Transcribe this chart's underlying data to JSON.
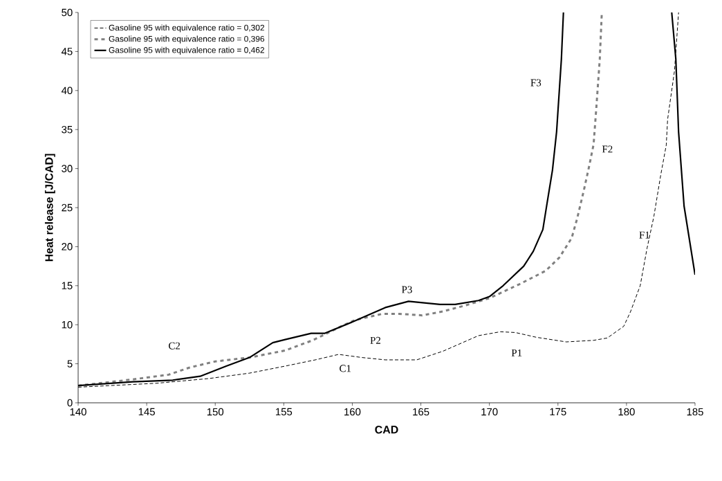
{
  "chart_data": {
    "type": "line",
    "xlabel": "CAD",
    "ylabel": "Heat release [J/CAD]",
    "xlim": [
      140,
      185
    ],
    "ylim": [
      0,
      50
    ],
    "xticks": [
      140,
      145,
      150,
      155,
      160,
      165,
      170,
      175,
      180,
      185
    ],
    "yticks": [
      0,
      5,
      10,
      15,
      20,
      25,
      30,
      35,
      40,
      45,
      50
    ],
    "grid": false,
    "legend": "top left",
    "marker": "none",
    "series": [
      {
        "name": "Gasoline 95 with equivalence ratio = 0,302",
        "color": "#000000",
        "line_style": "dashed",
        "x": [
          140,
          145.7,
          149.5,
          152.5,
          155.1,
          157.3,
          159,
          160.7,
          162.4,
          164.7,
          166.6,
          169.2,
          170.8,
          171.9,
          173.4,
          175.6,
          177.6,
          178.6,
          179.8,
          180.3,
          181,
          181.5,
          182,
          182.5,
          182.9,
          183,
          183.5,
          183.8
        ],
        "values": [
          2.0,
          2.5,
          3.1,
          3.8,
          4.7,
          5.5,
          6.2,
          5.8,
          5.5,
          5.5,
          6.6,
          8.6,
          9.1,
          9.0,
          8.4,
          7.8,
          8.0,
          8.3,
          9.8,
          11.7,
          15,
          19.8,
          23.9,
          29.2,
          33,
          36.3,
          42.5,
          50
        ]
      },
      {
        "name": "Gasoline 95 with equivalence ratio = 0,396",
        "color": "#808080",
        "line_style": "dotted",
        "x": [
          140,
          144,
          146.6,
          148.1,
          150,
          152.5,
          155.1,
          157.1,
          159.2,
          160.2,
          162.2,
          163.4,
          165.1,
          166.6,
          168.3,
          170,
          172.2,
          174.1,
          175.1,
          176,
          176.4,
          176.9,
          177.3,
          177.6,
          177.8,
          178.05,
          178.2
        ],
        "values": [
          2.2,
          3.0,
          3.6,
          4.5,
          5.3,
          5.8,
          6.7,
          8,
          9.8,
          10.6,
          11.4,
          11.4,
          11.2,
          11.7,
          12.5,
          13.4,
          15.2,
          16.9,
          18.6,
          21.1,
          23.6,
          27.3,
          30.5,
          33.1,
          37.8,
          44,
          50
        ]
      },
      {
        "name": "Gasoline 95 with equivalence ratio = 0,462",
        "color": "#000000",
        "line_style": "solid",
        "x": [
          140,
          144,
          146.9,
          148.9,
          150.8,
          152.5,
          154.2,
          155.1,
          157,
          158,
          160.2,
          162.4,
          164.1,
          166.4,
          167.5,
          169.2,
          170,
          171,
          172.5,
          173.2,
          173.9,
          174.2,
          174.6,
          174.9,
          175.25,
          175.4,
          179,
          183.3,
          183.6,
          183.8,
          184.2,
          185
        ],
        "values": [
          2.2,
          2.7,
          2.9,
          3.4,
          4.7,
          5.8,
          7.7,
          8.1,
          8.9,
          8.9,
          10.5,
          12.2,
          13.0,
          12.6,
          12.6,
          13.1,
          13.6,
          15,
          17.5,
          19.4,
          22.2,
          25.5,
          29.8,
          34.7,
          44,
          50,
          null,
          50,
          44,
          34.7,
          25.2,
          16.4
        ]
      }
    ],
    "annotations": [
      "C2",
      "C1",
      "P2",
      "P3",
      "P1",
      "F3",
      "F2",
      "F1"
    ]
  }
}
